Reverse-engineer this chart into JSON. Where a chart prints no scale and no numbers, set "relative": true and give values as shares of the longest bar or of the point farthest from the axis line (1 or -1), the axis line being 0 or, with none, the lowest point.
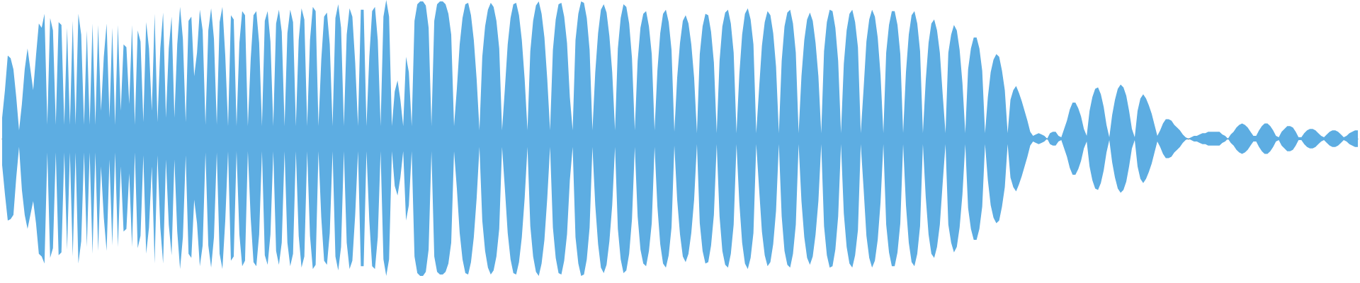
{
  "chart_data": {
    "type": "area",
    "relative": true,
    "categories": [
      null,
      null,
      null,
      null,
      null,
      null,
      null,
      null,
      null,
      null,
      null,
      null,
      null,
      null,
      null,
      null,
      null,
      null,
      null,
      null,
      null,
      null,
      null,
      null,
      null,
      null,
      null,
      null,
      null,
      null,
      null,
      null,
      null,
      null,
      null,
      null,
      null,
      null,
      null,
      null,
      null,
      null,
      null,
      null,
      null,
      null,
      null,
      null,
      null,
      null,
      null,
      null,
      null,
      null,
      null,
      null,
      null,
      null,
      null,
      null,
      null,
      null,
      null,
      null,
      null,
      null,
      null,
      null,
      null,
      null,
      null,
      null,
      null,
      null,
      null,
      null,
      null,
      null,
      null,
      null,
      null,
      null,
      null,
      null,
      null,
      null,
      null,
      null,
      null,
      null,
      null,
      null,
      null,
      null,
      null,
      null,
      null,
      null,
      null,
      null,
      null,
      null,
      null,
      null,
      null,
      null,
      null,
      null,
      null,
      null,
      null,
      null,
      null,
      null,
      null,
      null,
      null,
      null,
      null,
      null,
      null,
      null,
      null,
      null,
      null,
      null,
      null,
      null,
      null,
      null,
      null,
      null,
      null,
      null,
      null,
      null,
      null,
      null,
      null,
      null,
      null,
      null,
      null,
      null,
      null,
      null,
      null,
      null,
      null,
      null,
      null,
      null,
      null,
      null,
      null,
      null,
      null,
      null,
      null,
      null,
      null,
      null,
      null,
      null,
      null,
      null,
      null,
      null,
      null,
      null,
      null,
      null,
      null,
      null,
      null,
      null,
      null,
      null,
      null,
      null,
      null,
      null,
      null,
      null,
      null,
      null,
      null,
      null,
      null,
      null,
      null,
      null,
      null,
      null,
      null,
      null,
      null,
      null,
      null,
      null,
      null,
      null,
      null,
      null,
      null,
      null,
      null,
      null,
      null,
      null,
      null,
      null,
      null,
      null,
      null,
      null,
      null,
      null,
      null,
      null,
      null,
      null,
      null,
      null,
      null,
      null,
      null,
      null,
      null,
      null,
      null,
      null,
      null,
      null,
      null,
      null,
      null,
      null,
      null,
      null,
      null,
      null,
      null,
      null,
      null,
      null,
      null,
      null,
      null,
      null,
      null,
      null,
      null,
      null,
      null,
      null,
      null,
      null,
      null,
      null,
      null,
      null,
      null,
      null,
      null,
      null,
      null,
      null,
      null,
      null,
      null,
      null,
      null,
      null,
      null,
      null,
      null,
      null,
      null,
      null,
      null,
      null,
      null,
      null,
      null,
      null,
      null,
      null,
      null,
      null,
      null,
      null,
      null,
      null,
      null,
      null,
      null,
      null,
      null,
      null,
      null,
      null,
      null,
      null,
      null,
      null,
      null,
      null,
      null,
      null,
      null,
      null,
      null,
      null,
      null,
      null,
      null,
      null,
      null,
      null,
      null,
      null,
      null,
      null,
      null,
      null,
      null,
      null,
      null,
      null,
      null,
      null,
      null,
      null,
      null,
      null,
      null,
      null,
      null,
      null,
      null,
      null,
      null,
      null,
      null,
      null,
      null,
      null,
      null,
      null,
      null,
      null,
      null,
      null,
      null,
      null,
      null,
      null,
      null,
      null,
      null,
      null,
      null,
      null,
      null,
      null,
      null,
      null,
      null,
      null,
      null,
      null,
      null,
      null,
      null,
      null,
      null,
      null,
      null,
      null,
      null,
      null,
      null,
      null,
      null,
      null,
      null,
      null,
      null,
      null,
      null,
      null,
      null,
      null,
      null,
      null,
      null,
      null,
      null,
      null,
      null,
      null,
      null,
      null,
      null,
      null,
      null,
      null,
      null,
      null,
      null,
      null,
      null,
      null,
      null,
      null,
      null,
      null,
      null,
      null,
      null,
      null,
      null,
      null,
      null,
      null,
      null,
      null,
      null,
      null,
      null,
      null,
      null,
      null,
      null,
      null,
      null,
      null,
      null,
      null,
      null,
      null,
      null,
      null,
      null,
      null,
      null,
      null,
      null,
      null,
      null,
      null,
      null,
      null,
      null,
      null,
      null,
      null,
      null,
      null,
      null,
      null,
      null,
      null,
      null,
      null,
      null,
      null,
      null,
      null,
      null,
      null,
      null,
      null,
      null,
      null,
      null,
      null,
      null,
      null,
      null
    ],
    "series": [
      {
        "color": "#5dade2",
        "values": [
          0.15,
          0.35,
          0.6,
          0.58,
          0.5,
          0.3,
          0.06,
          0.25,
          0.5,
          0.65,
          0.5,
          0.35,
          0.6,
          0.83,
          0.8,
          0.9,
          0.1,
          0.87,
          0.78,
          0.1,
          0.84,
          0.82,
          0.1,
          0.8,
          0.1,
          0.85,
          0.1,
          0.9,
          0.75,
          0.1,
          0.78,
          0.1,
          0.83,
          0.1,
          0.82,
          0.2,
          0.59,
          0.83,
          0.15,
          0.8,
          0.1,
          0.82,
          0.2,
          0.68,
          0.66,
          0.25,
          0.82,
          0.1,
          0.78,
          0.7,
          0.12,
          0.84,
          0.65,
          0.2,
          0.9,
          0.12,
          0.65,
          0.91,
          0.15,
          0.65,
          0.88,
          0.15,
          0.68,
          0.95,
          0.72,
          0.12,
          0.85,
          0.88,
          0.45,
          0.62,
          0.93,
          0.78,
          0.1,
          0.78,
          0.94,
          0.72,
          0.1,
          0.84,
          0.95,
          0.6,
          0.09,
          0.89,
          0.86,
          0.09,
          0.69,
          0.92,
          0.89,
          0.09,
          0.57,
          0.89,
          0.92,
          0.69,
          0.09,
          0.85,
          0.92,
          0.7,
          0.09,
          0.83,
          0.93,
          0.77,
          0.09,
          0.76,
          0.93,
          0.84,
          0.09,
          0.71,
          0.94,
          0.86,
          0.09,
          0.71,
          0.95,
          0.92,
          0.09,
          0.57,
          0.88,
          0.91,
          0.68,
          0.09,
          0.87,
          0.97,
          0.8,
          0.09,
          0.75,
          0.94,
          0.88,
          0.55,
          0.09,
          0.93,
          0.93,
          0.09,
          0.59,
          0.92,
          0.95,
          0.71,
          0.09,
          0.88,
          1,
          0.88,
          0.09,
          0.34,
          0.42,
          0.28,
          0.09,
          0.59,
          0.48,
          0.09,
          0.85,
          0.97,
          0.99,
          0.99,
          0.96,
          0.8,
          0.09,
          0.85,
          0.97,
          0.99,
          0.99,
          0.97,
          0.9,
          0.75,
          0.09,
          0.36,
          0.68,
          0.87,
          0.97,
          0.98,
          0.89,
          0.71,
          0.43,
          0.06,
          0.59,
          0.81,
          0.93,
          0.98,
          0.95,
          0.85,
          0.65,
          0.06,
          0.36,
          0.68,
          0.87,
          0.97,
          0.98,
          0.89,
          0.71,
          0.43,
          0.06,
          0.63,
          0.85,
          0.96,
          0.99,
          0.9,
          0.73,
          0.43,
          0.06,
          0.64,
          0.86,
          0.97,
          0.98,
          0.88,
          0.69,
          0.3,
          0.06,
          0.71,
          0.9,
          0.99,
          0.98,
          0.87,
          0.64,
          0.06,
          0.48,
          0.76,
          0.93,
          0.97,
          0.91,
          0.74,
          0.48,
          0.06,
          0.65,
          0.87,
          0.97,
          0.95,
          0.83,
          0.58,
          0.06,
          0.56,
          0.8,
          0.9,
          0.92,
          0.81,
          0.61,
          0.06,
          0.49,
          0.76,
          0.9,
          0.93,
          0.84,
          0.64,
          0.05,
          0.44,
          0.69,
          0.85,
          0.89,
          0.83,
          0.68,
          0.44,
          0.04,
          0.61,
          0.81,
          0.9,
          0.89,
          0.77,
          0.55,
          0.04,
          0.56,
          0.81,
          0.91,
          0.93,
          0.83,
          0.62,
          0.04,
          0.46,
          0.75,
          0.9,
          0.94,
          0.86,
          0.68,
          0.04,
          0.36,
          0.67,
          0.84,
          0.92,
          0.89,
          0.76,
          0.52,
          0.04,
          0.56,
          0.81,
          0.91,
          0.93,
          0.83,
          0.62,
          0.04,
          0.45,
          0.71,
          0.86,
          0.91,
          0.85,
          0.69,
          0.45,
          0.04,
          0.63,
          0.84,
          0.93,
          0.92,
          0.8,
          0.56,
          0.04,
          0.54,
          0.78,
          0.9,
          0.93,
          0.84,
          0.66,
          0.04,
          0.36,
          0.7,
          0.86,
          0.93,
          0.88,
          0.73,
          0.46,
          0.04,
          0.62,
          0.82,
          0.92,
          0.92,
          0.82,
          0.61,
          0.04,
          0.48,
          0.75,
          0.89,
          0.92,
          0.83,
          0.63,
          0.04,
          0.42,
          0.69,
          0.83,
          0.86,
          0.78,
          0.62,
          0.32,
          0.04,
          0.62,
          0.75,
          0.82,
          0.78,
          0.64,
          0.4,
          0.04,
          0.5,
          0.65,
          0.73,
          0.73,
          0.65,
          0.49,
          0.04,
          0.3,
          0.48,
          0.57,
          0.61,
          0.59,
          0.49,
          0.35,
          0.04,
          0.28,
          0.35,
          0.38,
          0.33,
          0.27,
          0.2,
          0.13,
          0.05,
          0.02,
          0.03,
          0.04,
          0.03,
          0.02,
          0,
          0.04,
          0.05,
          0.05,
          0.02,
          0.01,
          0.07,
          0.13,
          0.21,
          0.26,
          0.26,
          0.22,
          0.16,
          0.07,
          0.02,
          0.2,
          0.3,
          0.36,
          0.37,
          0.32,
          0.23,
          0.1,
          0.01,
          0.17,
          0.28,
          0.36,
          0.39,
          0.37,
          0.31,
          0.2,
          0.07,
          0.01,
          0.2,
          0.29,
          0.32,
          0.29,
          0.24,
          0.18,
          0.1,
          0.02,
          0.06,
          0.11,
          0.14,
          0.14,
          0.13,
          0.1,
          0.08,
          0.06,
          0.03,
          0.01,
          0,
          0.01,
          0.02,
          0.02,
          0.03,
          0.04,
          0.04,
          0.05,
          0.05,
          0.05,
          0.05,
          0.05,
          0.03,
          0.02,
          0,
          0.03,
          0.05,
          0.08,
          0.1,
          0.11,
          0.1,
          0.08,
          0.05,
          0.02,
          0.02,
          0.06,
          0.09,
          0.11,
          0.11,
          0.09,
          0.06,
          0.02,
          0.01,
          0.05,
          0.07,
          0.09,
          0.09,
          0.08,
          0.05,
          0.01,
          0.01,
          0.04,
          0.06,
          0.07,
          0.07,
          0.06,
          0.04,
          0.02,
          0.01,
          0.03,
          0.05,
          0.06,
          0.06,
          0.05,
          0.03,
          0.01,
          0.02,
          0.04,
          0.05,
          0.06,
          0.06
        ]
      },
      {
        "color": "#5dade2",
        "values": [
          -0.19,
          -0.4,
          -0.59,
          -0.58,
          -0.55,
          -0.28,
          -0.06,
          -0.37,
          -0.55,
          -0.65,
          -0.55,
          -0.45,
          -0.61,
          -0.83,
          -0.85,
          -0.9,
          -0.1,
          -0.86,
          -0.79,
          -0.1,
          -0.84,
          -0.82,
          -0.1,
          -0.8,
          -0.1,
          -0.85,
          -0.1,
          -0.9,
          -0.74,
          -0.1,
          -0.78,
          -0.1,
          -0.83,
          -0.1,
          -0.81,
          -0.2,
          -0.57,
          -0.81,
          -0.15,
          -0.77,
          -0.1,
          -0.78,
          -0.2,
          -0.67,
          -0.65,
          -0.25,
          -0.78,
          -0.1,
          -0.79,
          -0.7,
          -0.12,
          -0.83,
          -0.64,
          -0.2,
          -0.9,
          -0.12,
          -0.64,
          -0.9,
          -0.15,
          -0.62,
          -0.84,
          -0.15,
          -0.67,
          -0.94,
          -0.71,
          -0.12,
          -0.83,
          -0.86,
          -0.44,
          -0.61,
          -0.92,
          -0.77,
          -0.1,
          -0.77,
          -0.93,
          -0.71,
          -0.1,
          -0.83,
          -0.94,
          -0.59,
          -0.09,
          -0.88,
          -0.85,
          -0.09,
          -0.69,
          -0.92,
          -0.88,
          -0.09,
          -0.57,
          -0.89,
          -0.92,
          -0.69,
          -0.09,
          -0.84,
          -0.91,
          -0.69,
          -0.09,
          -0.81,
          -0.91,
          -0.75,
          -0.09,
          -0.75,
          -0.92,
          -0.83,
          -0.09,
          -0.7,
          -0.93,
          -0.85,
          -0.09,
          -0.7,
          -0.94,
          -0.91,
          -0.09,
          -0.57,
          -0.88,
          -0.91,
          -0.68,
          -0.09,
          -0.85,
          -0.95,
          -0.78,
          -0.09,
          -0.75,
          -0.94,
          -0.88,
          -0.55,
          -0.09,
          -0.92,
          -0.92,
          -0.09,
          -0.59,
          -0.92,
          -0.94,
          -0.71,
          -0.09,
          -0.87,
          -0.99,
          -0.87,
          -0.09,
          -0.34,
          -0.41,
          -0.28,
          -0.09,
          -0.59,
          -0.48,
          -0.09,
          -0.85,
          -0.97,
          -0.99,
          -0.99,
          -0.96,
          -0.8,
          -0.09,
          -0.85,
          -0.96,
          -0.98,
          -0.98,
          -0.96,
          -0.9,
          -0.75,
          -0.09,
          -0.36,
          -0.68,
          -0.87,
          -0.97,
          -0.98,
          -0.89,
          -0.71,
          -0.43,
          -0.06,
          -0.59,
          -0.81,
          -0.93,
          -0.98,
          -0.95,
          -0.85,
          -0.65,
          -0.06,
          -0.36,
          -0.68,
          -0.87,
          -0.97,
          -0.98,
          -0.89,
          -0.71,
          -0.43,
          -0.06,
          -0.63,
          -0.85,
          -0.96,
          -0.99,
          -0.9,
          -0.73,
          -0.43,
          -0.06,
          -0.64,
          -0.86,
          -0.97,
          -0.98,
          -0.88,
          -0.69,
          -0.3,
          -0.06,
          -0.71,
          -0.9,
          -0.99,
          -0.98,
          -0.87,
          -0.64,
          -0.06,
          -0.48,
          -0.76,
          -0.93,
          -0.97,
          -0.91,
          -0.74,
          -0.48,
          -0.06,
          -0.65,
          -0.87,
          -0.97,
          -0.95,
          -0.83,
          -0.58,
          -0.06,
          -0.56,
          -0.8,
          -0.9,
          -0.92,
          -0.81,
          -0.61,
          -0.06,
          -0.49,
          -0.76,
          -0.9,
          -0.93,
          -0.84,
          -0.64,
          -0.05,
          -0.44,
          -0.69,
          -0.85,
          -0.89,
          -0.83,
          -0.68,
          -0.44,
          -0.04,
          -0.61,
          -0.81,
          -0.9,
          -0.89,
          -0.77,
          -0.55,
          -0.04,
          -0.56,
          -0.81,
          -0.91,
          -0.93,
          -0.83,
          -0.62,
          -0.04,
          -0.46,
          -0.75,
          -0.9,
          -0.94,
          -0.86,
          -0.68,
          -0.04,
          -0.36,
          -0.67,
          -0.84,
          -0.92,
          -0.89,
          -0.76,
          -0.52,
          -0.04,
          -0.56,
          -0.81,
          -0.91,
          -0.93,
          -0.83,
          -0.62,
          -0.04,
          -0.45,
          -0.71,
          -0.86,
          -0.91,
          -0.85,
          -0.69,
          -0.45,
          -0.04,
          -0.63,
          -0.84,
          -0.93,
          -0.92,
          -0.8,
          -0.56,
          -0.04,
          -0.54,
          -0.78,
          -0.9,
          -0.93,
          -0.84,
          -0.66,
          -0.04,
          -0.36,
          -0.7,
          -0.86,
          -0.93,
          -0.88,
          -0.73,
          -0.46,
          -0.04,
          -0.62,
          -0.82,
          -0.92,
          -0.92,
          -0.82,
          -0.61,
          -0.04,
          -0.48,
          -0.75,
          -0.89,
          -0.92,
          -0.83,
          -0.63,
          -0.04,
          -0.42,
          -0.69,
          -0.83,
          -0.86,
          -0.78,
          -0.62,
          -0.32,
          -0.04,
          -0.62,
          -0.75,
          -0.82,
          -0.78,
          -0.64,
          -0.4,
          -0.04,
          -0.5,
          -0.65,
          -0.73,
          -0.73,
          -0.65,
          -0.49,
          -0.04,
          -0.3,
          -0.48,
          -0.57,
          -0.61,
          -0.59,
          -0.49,
          -0.35,
          -0.04,
          -0.28,
          -0.35,
          -0.38,
          -0.33,
          -0.27,
          -0.2,
          -0.13,
          -0.05,
          -0.02,
          -0.03,
          -0.04,
          -0.03,
          -0.02,
          0,
          -0.04,
          -0.05,
          -0.05,
          -0.02,
          -0.01,
          -0.07,
          -0.13,
          -0.21,
          -0.26,
          -0.26,
          -0.22,
          -0.16,
          -0.07,
          -0.02,
          -0.2,
          -0.3,
          -0.36,
          -0.37,
          -0.32,
          -0.23,
          -0.1,
          -0.01,
          -0.17,
          -0.28,
          -0.36,
          -0.39,
          -0.37,
          -0.31,
          -0.2,
          -0.07,
          -0.01,
          -0.2,
          -0.29,
          -0.32,
          -0.29,
          -0.24,
          -0.18,
          -0.1,
          -0.02,
          -0.06,
          -0.11,
          -0.14,
          -0.14,
          -0.13,
          -0.1,
          -0.08,
          -0.06,
          -0.03,
          -0.01,
          0,
          -0.01,
          -0.02,
          -0.02,
          -0.03,
          -0.04,
          -0.04,
          -0.05,
          -0.05,
          -0.05,
          -0.05,
          -0.05,
          -0.03,
          -0.02,
          0,
          -0.03,
          -0.05,
          -0.08,
          -0.1,
          -0.11,
          -0.1,
          -0.08,
          -0.05,
          -0.02,
          -0.02,
          -0.06,
          -0.09,
          -0.11,
          -0.11,
          -0.09,
          -0.06,
          -0.02,
          -0.01,
          -0.05,
          -0.07,
          -0.09,
          -0.09,
          -0.08,
          -0.05,
          -0.01,
          -0.01,
          -0.04,
          -0.06,
          -0.07,
          -0.07,
          -0.06,
          -0.04,
          -0.02,
          -0.01,
          -0.03,
          -0.05,
          -0.06,
          -0.06,
          -0.05,
          -0.03,
          -0.01,
          -0.02,
          -0.04,
          -0.05,
          -0.06,
          -0.06
        ]
      }
    ]
  }
}
